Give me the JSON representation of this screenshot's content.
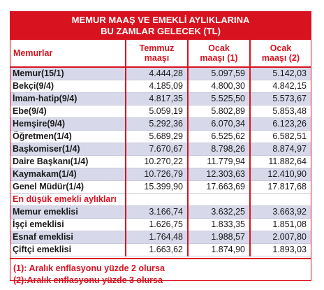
{
  "banner": {
    "line1": "MEMUR MAAŞ VE EMEKLİ AYLIKLARINA",
    "line2": "BU ZAMLAR GELECEK (TL)"
  },
  "table": {
    "headers": {
      "col0": "Memurlar",
      "col1_line1": "Temmuz",
      "col1_line2": "maaşı",
      "col2_line1": "Ocak",
      "col2_line2": "maaşı (1)",
      "col3_line1": "Ocak",
      "col3_line2": "maaşı (2)"
    },
    "rows": [
      {
        "name": "Memur(15/1)",
        "temmuz": "4.444,28",
        "ocak1": "5.097,59",
        "ocak2": "5.142,03"
      },
      {
        "name": "Bekçi(9/4)",
        "temmuz": "4.185,09",
        "ocak1": "4.800,30",
        "ocak2": "4.842,15"
      },
      {
        "name": "İmam-hatip(9/4)",
        "temmuz": "4.817,35",
        "ocak1": "5.525,50",
        "ocak2": "5.573,67"
      },
      {
        "name": "Ebe(9/4)",
        "temmuz": "5.059,19",
        "ocak1": "5.802,89",
        "ocak2": "5.853,48"
      },
      {
        "name": "Hemşire(9/4)",
        "temmuz": "5.292,36",
        "ocak1": "6.070,34",
        "ocak2": "6.123,26"
      },
      {
        "name": "Öğretmen(1/4)",
        "temmuz": "5.689,29",
        "ocak1": "6.525,62",
        "ocak2": "6.582,51"
      },
      {
        "name": "Başkomiser(1/4)",
        "temmuz": "7.670,67",
        "ocak1": "8.798,26",
        "ocak2": "8.874,97"
      },
      {
        "name": "Daire Başkanı(1/4)",
        "temmuz": "10.270,22",
        "ocak1": "11.779,94",
        "ocak2": "11.882,64"
      },
      {
        "name": "Kaymakam(1/4)",
        "temmuz": "10.726,79",
        "ocak1": "12.303,63",
        "ocak2": "12.410,90"
      },
      {
        "name": "Genel Müdür(1/4)",
        "temmuz": "15.399,90",
        "ocak1": "17.663,69",
        "ocak2": "17.817,68"
      }
    ],
    "section_label": "En düşük emekli aylıkları",
    "pension_rows": [
      {
        "name": "Memur emeklisi",
        "temmuz": "3.166,74",
        "ocak1": "3.632,25",
        "ocak2": "3.663,92"
      },
      {
        "name": "İşçi emeklisi",
        "temmuz": "1.626,75",
        "ocak1": "1.833,35",
        "ocak2": "1.851,08"
      },
      {
        "name": "Esnaf emeklisi",
        "temmuz": "1.764,48",
        "ocak1": "1.988,57",
        "ocak2": "2.007,80"
      },
      {
        "name": "Çiftçi emeklisi",
        "temmuz": "1.663,62",
        "ocak1": "1.874,90",
        "ocak2": "1.893,03"
      }
    ]
  },
  "notes": {
    "note1": "(1): Aralık enflasyonu yüzde 2 olursa",
    "note2": "(2):Aralık enflasyonu yüzde 3 olursa"
  },
  "colors": {
    "accent_red": "#d9121f",
    "row_stripe": "#d7d9ea"
  }
}
